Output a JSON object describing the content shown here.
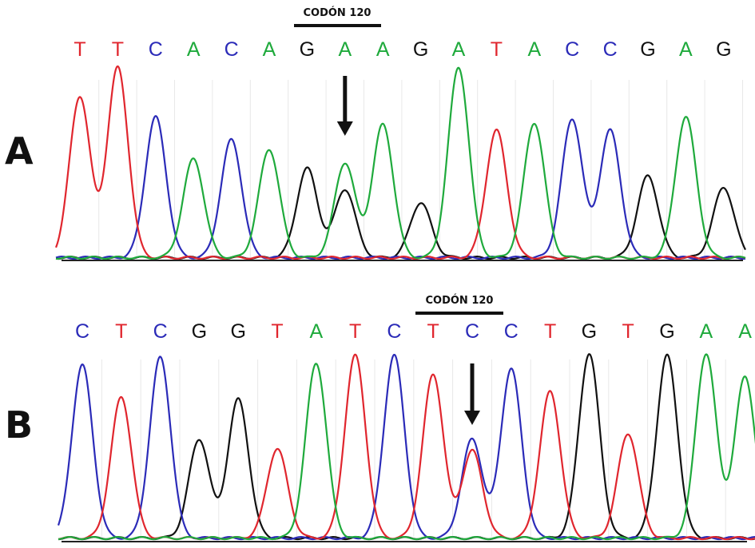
{
  "panels": [
    {
      "label": "A",
      "codon_label": "CODÓN 120",
      "bases": [
        "T",
        "T",
        "C",
        "A",
        "C",
        "A",
        "G",
        "A",
        "A",
        "G",
        "A",
        "T",
        "A",
        "C",
        "C",
        "G",
        "A",
        "G"
      ],
      "arrow_at_base": 7,
      "codon_span": [
        6,
        8
      ],
      "peaks": [
        {
          "base": "T",
          "height": 0.85
        },
        {
          "base": "T",
          "height": 1.0
        },
        {
          "base": "C",
          "height": 0.74
        },
        {
          "base": "A",
          "height": 0.52
        },
        {
          "base": "C",
          "height": 0.62
        },
        {
          "base": "A",
          "height": 0.57
        },
        {
          "base": "G",
          "height": 0.47
        },
        {
          "base": "A",
          "height": 0.5,
          "secondary": {
            "base": "G",
            "height": 0.36
          }
        },
        {
          "base": "A",
          "height": 0.7
        },
        {
          "base": "G",
          "height": 0.29
        },
        {
          "base": "A",
          "height": 1.0
        },
        {
          "base": "T",
          "height": 0.67
        },
        {
          "base": "A",
          "height": 0.71
        },
        {
          "base": "C",
          "height": 0.73
        },
        {
          "base": "C",
          "height": 0.67
        },
        {
          "base": "G",
          "height": 0.43
        },
        {
          "base": "A",
          "height": 0.74
        },
        {
          "base": "G",
          "height": 0.37
        }
      ]
    },
    {
      "label": "B",
      "codon_label": "CODÓN 120",
      "bases": [
        "C",
        "T",
        "C",
        "G",
        "G",
        "T",
        "A",
        "T",
        "C",
        "T",
        "C",
        "C",
        "T",
        "G",
        "T",
        "G",
        "A",
        "A"
      ],
      "arrow_at_base": 10,
      "codon_span": [
        9,
        11
      ],
      "peaks": [
        {
          "base": "C",
          "height": 0.91
        },
        {
          "base": "T",
          "height": 0.74
        },
        {
          "base": "C",
          "height": 0.95
        },
        {
          "base": "G",
          "height": 0.52
        },
        {
          "base": "G",
          "height": 0.73
        },
        {
          "base": "T",
          "height": 0.47
        },
        {
          "base": "A",
          "height": 0.92
        },
        {
          "base": "T",
          "height": 0.96
        },
        {
          "base": "C",
          "height": 0.96
        },
        {
          "base": "T",
          "height": 0.86
        },
        {
          "base": "C",
          "height": 0.52,
          "secondary": {
            "base": "T",
            "height": 0.46
          }
        },
        {
          "base": "C",
          "height": 0.89
        },
        {
          "base": "T",
          "height": 0.77
        },
        {
          "base": "G",
          "height": 0.97
        },
        {
          "base": "T",
          "height": 0.55
        },
        {
          "base": "G",
          "height": 0.96
        },
        {
          "base": "A",
          "height": 0.97
        },
        {
          "base": "A",
          "height": 0.85
        }
      ]
    }
  ],
  "base_colors": {
    "A": "#1faa3c",
    "C": "#2b2bb8",
    "G": "#111111",
    "T": "#e0262e"
  }
}
